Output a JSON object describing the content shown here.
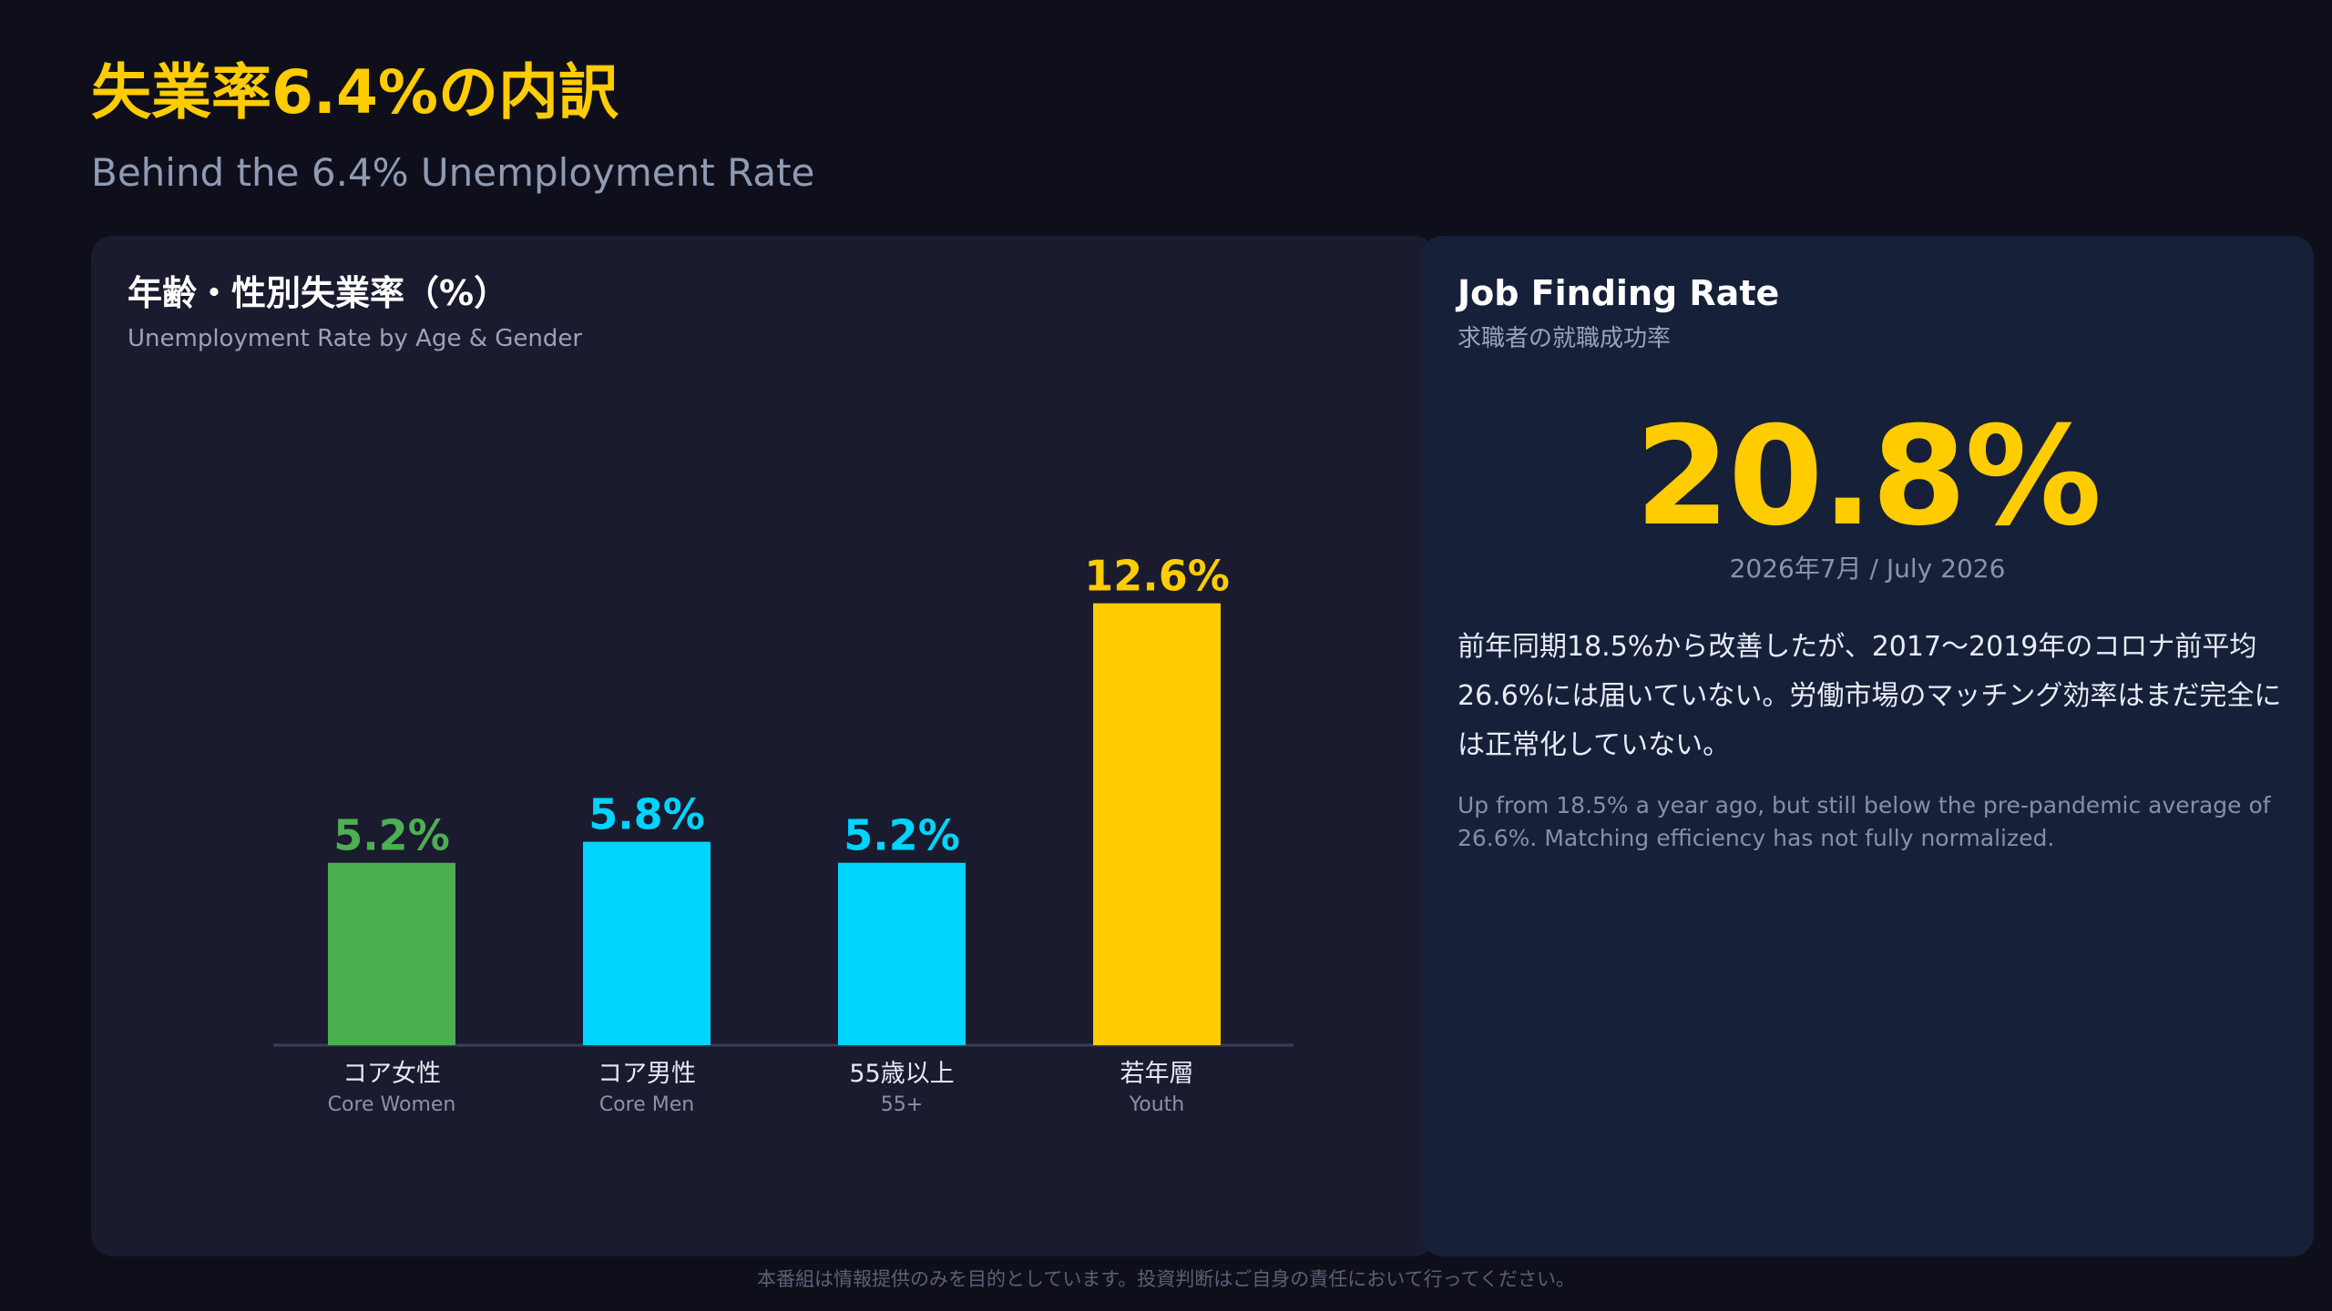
{
  "header": {
    "title": "失業率6.4%の内訳",
    "subtitle": "Behind the 6.4% Unemployment Rate"
  },
  "colors": {
    "accent": "#ffcc00",
    "green": "#4caf50",
    "cyan": "#00d4ff",
    "yellow": "#ffcc00"
  },
  "chart_panel": {
    "title": "年齢・性別失業率（%）",
    "subtitle": "Unemployment Rate by Age & Gender"
  },
  "chart_data": {
    "type": "bar",
    "title": "年齢・性別失業率（%）",
    "subtitle": "Unemployment Rate by Age & Gender",
    "ylim": [
      0,
      13.5
    ],
    "grid": false,
    "categories": [
      {
        "label_jp": "コア女性",
        "label_en": "Core Women",
        "value": 5.2,
        "value_label": "5.2%",
        "color": "#4caf50"
      },
      {
        "label_jp": "コア男性",
        "label_en": "Core Men",
        "value": 5.8,
        "value_label": "5.8%",
        "color": "#00d4ff"
      },
      {
        "label_jp": "55歳以上",
        "label_en": "55+",
        "value": 5.2,
        "value_label": "5.2%",
        "color": "#00d4ff"
      },
      {
        "label_jp": "若年層",
        "label_en": "Youth",
        "value": 12.6,
        "value_label": "12.6%",
        "color": "#ffcc00"
      }
    ]
  },
  "info_panel": {
    "title": "Job Finding Rate",
    "subtitle": "求職者の就職成功率",
    "big_value": "20.8%",
    "date": "2026年7月 / July 2026",
    "description_jp": "前年同期18.5%から改善したが、2017〜2019年のコロナ前平均26.6%には届いていない。労働市場のマッチング効率はまだ完全には正常化していない。",
    "description_en": "Up from 18.5% a year ago, but still below the pre-pandemic average of 26.6%. Matching efficiency has not fully normalized."
  },
  "footer": {
    "disclaimer": "本番組は情報提供のみを目的としています。投資判断はご自身の責任において行ってください。"
  }
}
